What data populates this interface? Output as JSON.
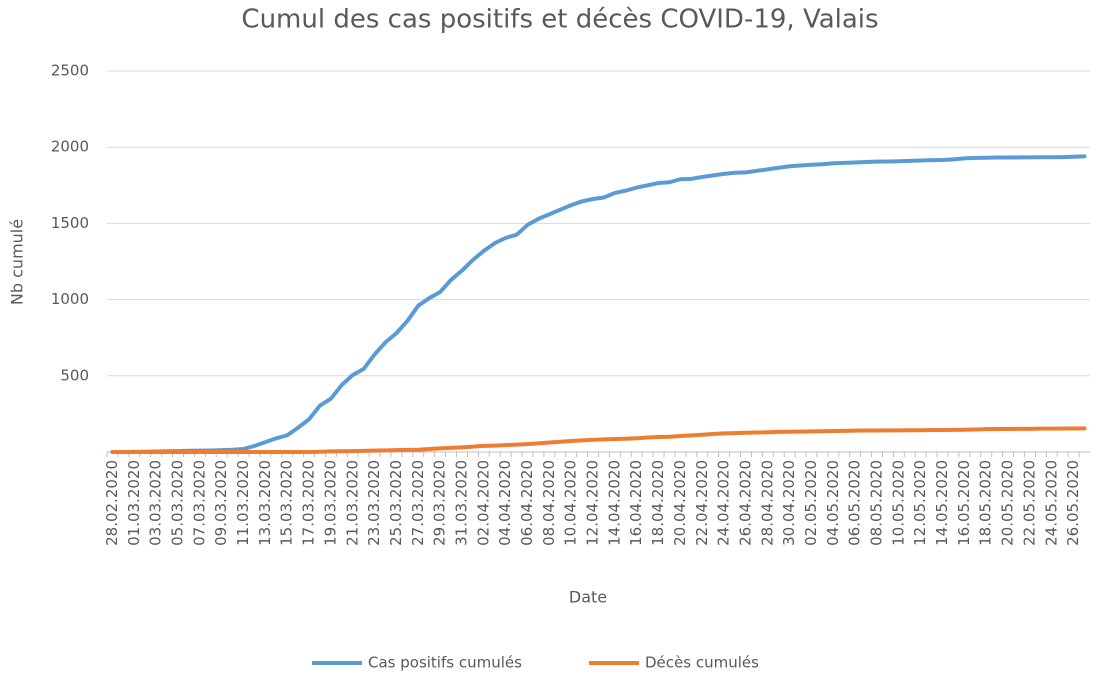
{
  "chart_data": {
    "type": "line",
    "title": "Cumul des cas positifs et décès COVID-19, Valais",
    "x_label": "Date",
    "y_label": "Nb cumulé",
    "categories": [
      "28.02.2020",
      null,
      "01.03.2020",
      null,
      "03.03.2020",
      null,
      "05.03.2020",
      null,
      "07.03.2020",
      null,
      "09.03.2020",
      null,
      "11.03.2020",
      null,
      "13.03.2020",
      null,
      "15.03.2020",
      null,
      "17.03.2020",
      null,
      "19.03.2020",
      null,
      "21.03.2020",
      null,
      "23.03.2020",
      null,
      "25.03.2020",
      null,
      "27.03.2020",
      null,
      "29.03.2020",
      null,
      "31.03.2020",
      null,
      "02.04.2020",
      null,
      "04.04.2020",
      null,
      "06.04.2020",
      null,
      "08.04.2020",
      null,
      "10.04.2020",
      null,
      "12.04.2020",
      null,
      "14.04.2020",
      null,
      "16.04.2020",
      null,
      "18.04.2020",
      null,
      "20.04.2020",
      null,
      "22.04.2020",
      null,
      "24.04.2020",
      null,
      "26.04.2020",
      null,
      "28.04.2020",
      null,
      "30.04.2020",
      null,
      "02.05.2020",
      null,
      "04.05.2020",
      null,
      "06.05.2020",
      null,
      "08.05.2020",
      null,
      "10.05.2020",
      null,
      "12.05.2020",
      null,
      "14.05.2020",
      null,
      "16.05.2020",
      null,
      "18.05.2020",
      null,
      "20.05.2020",
      null,
      "22.05.2020",
      null,
      "24.05.2020",
      null,
      "26.05.2020",
      null
    ],
    "series": [
      {
        "name": "Cas positifs cumulés",
        "color": "#5b9bd5",
        "values": [
          0,
          0,
          1,
          2,
          3,
          5,
          6,
          8,
          9,
          10,
          12,
          15,
          20,
          40,
          65,
          90,
          110,
          160,
          215,
          305,
          350,
          440,
          505,
          545,
          640,
          720,
          780,
          860,
          960,
          1010,
          1050,
          1130,
          1190,
          1260,
          1320,
          1370,
          1405,
          1425,
          1490,
          1530,
          1560,
          1590,
          1620,
          1645,
          1660,
          1670,
          1700,
          1715,
          1735,
          1750,
          1765,
          1770,
          1790,
          1792,
          1805,
          1815,
          1825,
          1832,
          1835,
          1845,
          1855,
          1865,
          1875,
          1880,
          1885,
          1888,
          1895,
          1897,
          1900,
          1903,
          1905,
          1906,
          1908,
          1910,
          1913,
          1915,
          1916,
          1920,
          1927,
          1930,
          1931,
          1932,
          1932,
          1933,
          1933,
          1934,
          1934,
          1935,
          1937,
          1940
        ]
      },
      {
        "name": "Décès cumulés",
        "color": "#ed7d31",
        "values": [
          0,
          0,
          0,
          0,
          0,
          0,
          0,
          0,
          0,
          0,
          0,
          0,
          0,
          0,
          0,
          0,
          0,
          0,
          0,
          2,
          4,
          5,
          6,
          7,
          9,
          11,
          12,
          14,
          15,
          20,
          24,
          27,
          30,
          35,
          40,
          42,
          45,
          48,
          52,
          57,
          62,
          67,
          72,
          76,
          80,
          83,
          85,
          87,
          90,
          95,
          98,
          100,
          105,
          109,
          113,
          118,
          122,
          124,
          126,
          128,
          130,
          132,
          133,
          134,
          135,
          136,
          138,
          139,
          140,
          141,
          141,
          142,
          142,
          143,
          143,
          144,
          144,
          145,
          146,
          148,
          150,
          151,
          151,
          152,
          152,
          153,
          153,
          154,
          154,
          155
        ]
      }
    ],
    "ylim": [
      0,
      2500
    ],
    "yticks": [
      500,
      1000,
      1500,
      2000,
      2500
    ],
    "grid": true,
    "legend": "bottom"
  }
}
